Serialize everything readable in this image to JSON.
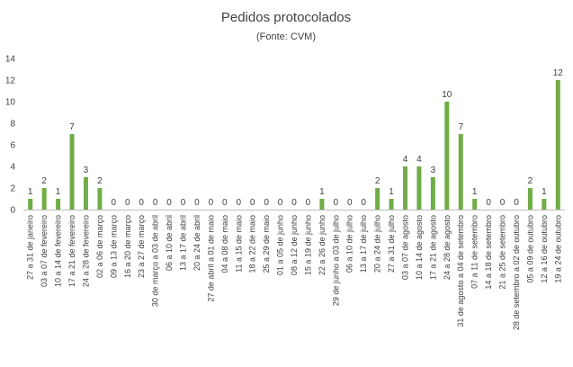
{
  "chart_data": {
    "type": "bar",
    "title": "Pedidos protocolados",
    "subtitle": "(Fonte: CVM)",
    "xlabel": "",
    "ylabel": "",
    "ylim": [
      0,
      14
    ],
    "yticks": [
      0,
      2,
      4,
      6,
      8,
      10,
      12,
      14
    ],
    "grid": false,
    "legend": "none",
    "bar_color": "#70AD47",
    "categories": [
      "27 a 31 de janeiro",
      "03 a 07 de fevereiro",
      "10 a 14 de fevereiro",
      "17 a 21 de fevereiro",
      "24 a 28 de fevereiro",
      "02 a 06 de março",
      "09 a 13 de março",
      "16 a 20 de março",
      "23 a 27 de março",
      "30 de março a 03 de abril",
      "06 a 10 de abril",
      "13 a 17 de abril",
      "20 a 24 de abril",
      "27 de abril a 01 de maio",
      "04 a 08 de maio",
      "11 a 15 de maio",
      "18 a 22 de maio",
      "25 a 29 de maio",
      "01 a 05 de junho",
      "08 a 12 de junho",
      "15 a 19 de junho",
      "22 a 26 de junho",
      "29 de junho a 03 de julho",
      "06 a 10 de julho",
      "13 a 17 de julho",
      "20 a 24 de julho",
      "27 a 31 de julho",
      "03 a 07 de agosto",
      "10 a 14 de agosto",
      "17 a 21 de agosto",
      "24 a 28 de agosto",
      "31 de agosto a 04 de setembro",
      "07 a 11 de setembro",
      "14 a 18 de setembro",
      "21 a 25 de setembro",
      "28 de setembro a 02 de outubro",
      "05 a 09 de outubro",
      "12 a 16 de outubro",
      "19 a 24 de outubro"
    ],
    "values": [
      1,
      2,
      1,
      7,
      3,
      2,
      0,
      0,
      0,
      0,
      0,
      0,
      0,
      0,
      0,
      0,
      0,
      0,
      0,
      0,
      0,
      1,
      0,
      0,
      0,
      2,
      1,
      4,
      4,
      3,
      10,
      7,
      1,
      0,
      0,
      0,
      2,
      1,
      12
    ]
  }
}
